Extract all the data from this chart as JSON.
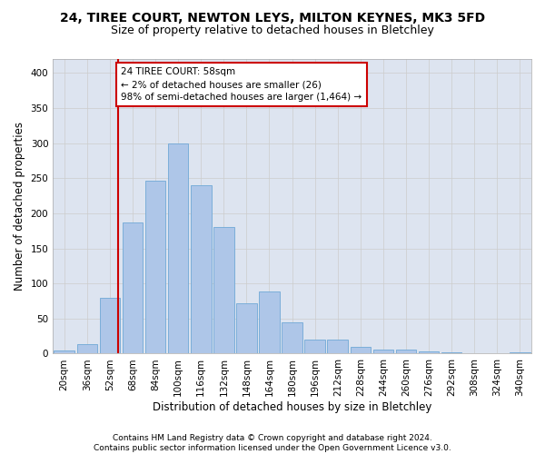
{
  "title1": "24, TIREE COURT, NEWTON LEYS, MILTON KEYNES, MK3 5FD",
  "title2": "Size of property relative to detached houses in Bletchley",
  "xlabel": "Distribution of detached houses by size in Bletchley",
  "ylabel": "Number of detached properties",
  "categories": [
    "20sqm",
    "36sqm",
    "52sqm",
    "68sqm",
    "84sqm",
    "100sqm",
    "116sqm",
    "132sqm",
    "148sqm",
    "164sqm",
    "180sqm",
    "196sqm",
    "212sqm",
    "228sqm",
    "244sqm",
    "260sqm",
    "276sqm",
    "292sqm",
    "308sqm",
    "324sqm",
    "340sqm"
  ],
  "values": [
    4,
    13,
    80,
    187,
    246,
    300,
    240,
    180,
    72,
    89,
    44,
    20,
    20,
    10,
    6,
    6,
    3,
    2,
    0,
    0,
    2
  ],
  "bar_color": "#aec6e8",
  "bar_edge_color": "#6fa8d6",
  "annotation_text": "24 TIREE COURT: 58sqm\n← 2% of detached houses are smaller (26)\n98% of semi-detached houses are larger (1,464) →",
  "annotation_box_color": "#ffffff",
  "annotation_box_edge_color": "#cc0000",
  "red_line_color": "#cc0000",
  "ylim": [
    0,
    420
  ],
  "yticks": [
    0,
    50,
    100,
    150,
    200,
    250,
    300,
    350,
    400
  ],
  "grid_color": "#cccccc",
  "background_color": "#dde4f0",
  "footer1": "Contains HM Land Registry data © Crown copyright and database right 2024.",
  "footer2": "Contains public sector information licensed under the Open Government Licence v3.0.",
  "title1_fontsize": 10,
  "title2_fontsize": 9,
  "xlabel_fontsize": 8.5,
  "ylabel_fontsize": 8.5,
  "tick_fontsize": 7.5,
  "footer_fontsize": 6.5,
  "annotation_fontsize": 7.5
}
